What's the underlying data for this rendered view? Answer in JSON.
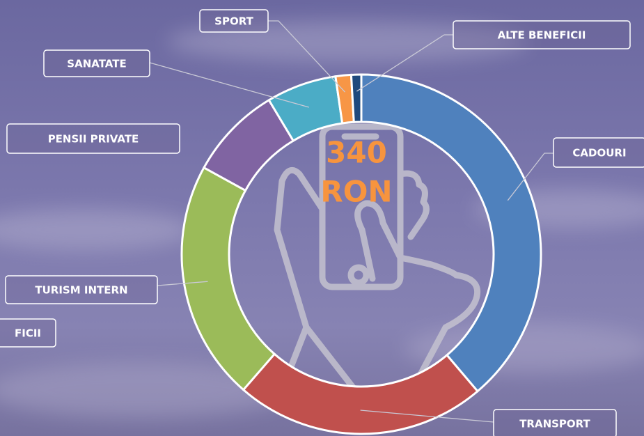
{
  "chart_data": {
    "type": "donut",
    "categories": [
      "CADOURI",
      "TRANSPORT",
      "TURISM INTERN",
      "PENSII PRIVATE",
      "SANATATE",
      "SPORT",
      "ALTE BENEFICII"
    ],
    "values": [
      38.8,
      22.6,
      21.6,
      8.4,
      6.3,
      1.4,
      0.9
    ],
    "colors": [
      "#4f81bd",
      "#c0504d",
      "#9bbb59",
      "#8064a2",
      "#4bacc6",
      "#f79646",
      "#1f497d"
    ],
    "center_label": [
      "340",
      "RON"
    ],
    "annotation": "FICII"
  }
}
